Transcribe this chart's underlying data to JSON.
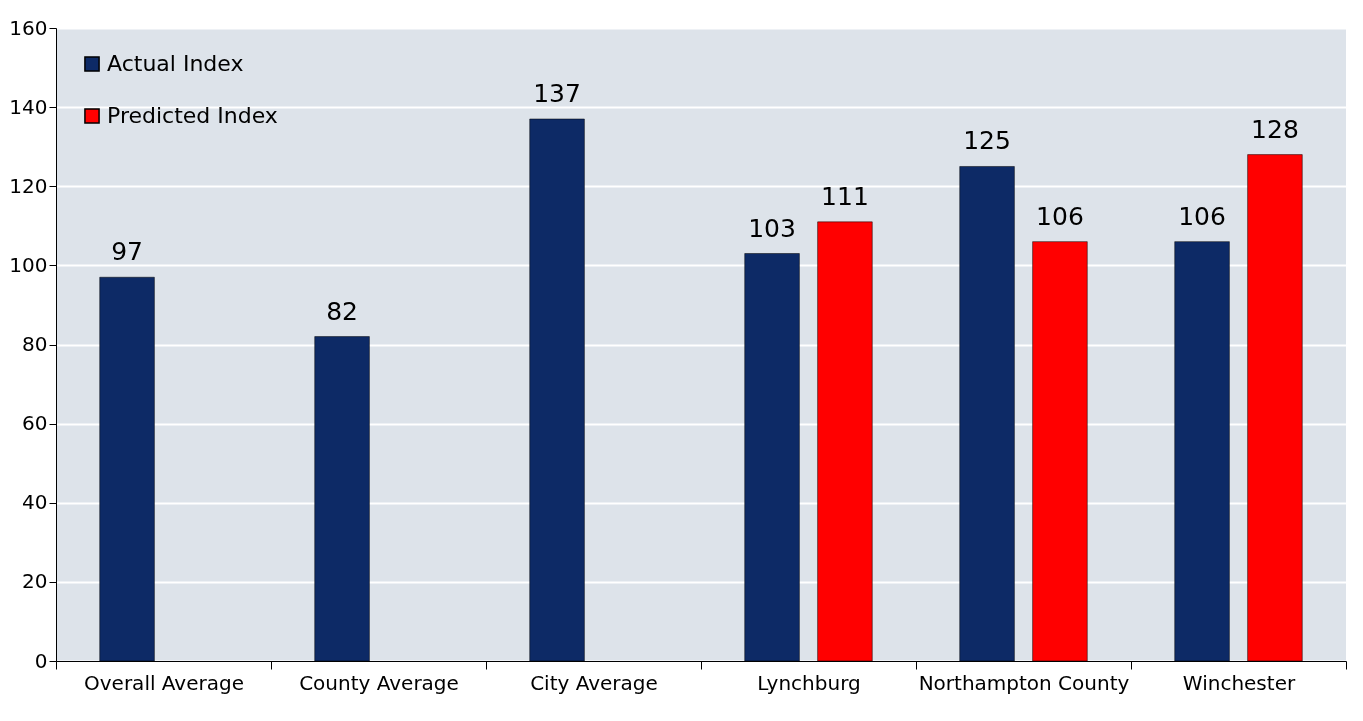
{
  "chart_data": {
    "type": "bar",
    "categories": [
      "Overall Average",
      "County Average",
      "City Average",
      "Lynchburg",
      "Northampton County",
      "Winchester"
    ],
    "series": [
      {
        "name": "Actual Index",
        "color": "#0d2a66",
        "values": [
          97,
          82,
          137,
          103,
          125,
          106
        ]
      },
      {
        "name": "Predicted Index",
        "color": "#ff0000",
        "values": [
          null,
          null,
          null,
          111,
          106,
          128
        ]
      }
    ],
    "ylim": [
      0,
      160
    ],
    "yticks": [
      0,
      20,
      40,
      60,
      80,
      100,
      120,
      140,
      160
    ],
    "grid": "y",
    "legend": "top left",
    "data_labels": true
  }
}
